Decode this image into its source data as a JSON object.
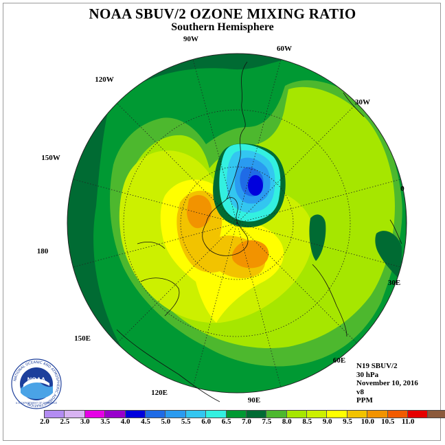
{
  "title": "NOAA SBUV/2 OZONE MIXING RATIO",
  "subtitle": "Southern Hemisphere",
  "longitude_labels": [
    "90W",
    "60W",
    "30W",
    "0",
    "30E",
    "60E",
    "90E",
    "120E",
    "150E",
    "180",
    "150W",
    "120W"
  ],
  "info": {
    "satellite": "N19 SBUV/2",
    "level": "30 hPa",
    "date": "November 10, 2016",
    "version": "v8",
    "units": "PPM"
  },
  "colorbar": {
    "ticks": [
      "2.0",
      "2.5",
      "3.0",
      "3.5",
      "4.0",
      "4.5",
      "5.0",
      "5.5",
      "6.0",
      "6.5",
      "7.0",
      "7.5",
      "8.0",
      "8.5",
      "9.0",
      "9.5",
      "10.0",
      "10.5",
      "11.0"
    ],
    "colors": [
      "#b38cf2",
      "#d8b3f2",
      "#e600e6",
      "#9900cc",
      "#0000dd",
      "#1f6be6",
      "#2a9bf0",
      "#33c6f0",
      "#33f0e0",
      "#009933",
      "#006b33",
      "#4db82e",
      "#a6e600",
      "#ccf000",
      "#ffff00",
      "#f2c300",
      "#f29300",
      "#f25b00",
      "#e60000",
      "#8c5a3c"
    ]
  },
  "logo": {
    "text": "NOAA",
    "ring_text": "NATIONAL OCEANIC AND ATMOSPHERIC ADMINISTRATION",
    "ring_text2": "U.S. DEPARTMENT OF COMMERCE"
  },
  "colors": {
    "dark_green": "#006b33",
    "green": "#009933",
    "mid_green": "#4db82e",
    "lime": "#a6e600",
    "yellow_green": "#ccf000",
    "yellow": "#ffff00",
    "gold": "#f2c300",
    "orange": "#f29300",
    "cyan": "#33f0e0",
    "light_blue": "#2a9bf0",
    "blue": "#0000dd"
  }
}
